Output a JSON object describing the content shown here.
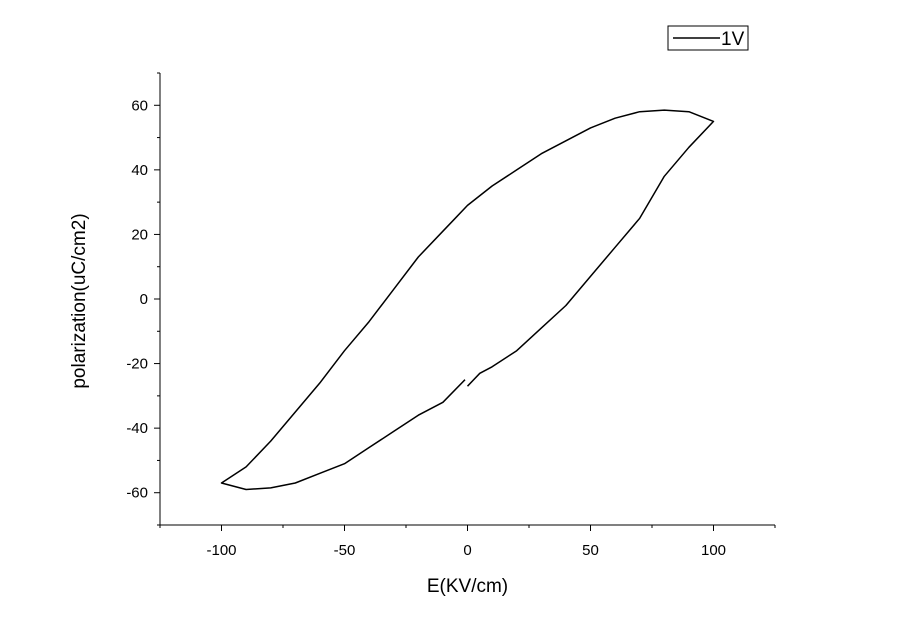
{
  "chart_data": {
    "type": "line",
    "title": "",
    "xlabel": "E(KV/cm)",
    "ylabel": "polarization(uC/cm2)",
    "xlim": [
      -125,
      125
    ],
    "ylim": [
      -70,
      70
    ],
    "x_ticks": [
      -100,
      -50,
      0,
      50,
      100
    ],
    "x_tick_labels": [
      "-100",
      "-50",
      "0",
      "50",
      "100"
    ],
    "y_ticks": [
      -60,
      -40,
      -20,
      0,
      20,
      40,
      60
    ],
    "y_tick_labels": [
      "-60",
      "-40",
      "-20",
      "0",
      "20",
      "40",
      "60"
    ],
    "grid": false,
    "legend": {
      "position": "top-right",
      "entries": [
        "1V"
      ]
    },
    "colors": {
      "line": "#000000",
      "axis": "#000000",
      "background": "#ffffff"
    },
    "series": [
      {
        "name": "1V",
        "x": [
          0,
          5,
          10,
          20,
          30,
          40,
          50,
          60,
          70,
          80,
          90,
          100,
          90,
          80,
          70,
          60,
          50,
          40,
          30,
          20,
          10,
          0,
          -5,
          -10,
          -20,
          -30,
          -40,
          -50,
          -60,
          -70,
          -80,
          -90,
          -100,
          -90,
          -80,
          -70,
          -60,
          -50,
          -40,
          -30,
          -20,
          -10,
          -1
        ],
        "y": [
          -27,
          -23,
          -21,
          -16,
          -9,
          -2,
          7,
          16,
          25,
          38,
          47,
          55,
          58,
          58.5,
          58,
          56,
          53,
          49,
          45,
          40,
          35,
          29,
          25,
          21,
          13,
          3,
          -7,
          -16,
          -26,
          -35,
          -44,
          -52,
          -57,
          -59,
          -58.5,
          -57,
          -54,
          -51,
          -46,
          -41,
          -36,
          -32,
          -25
        ]
      }
    ]
  }
}
